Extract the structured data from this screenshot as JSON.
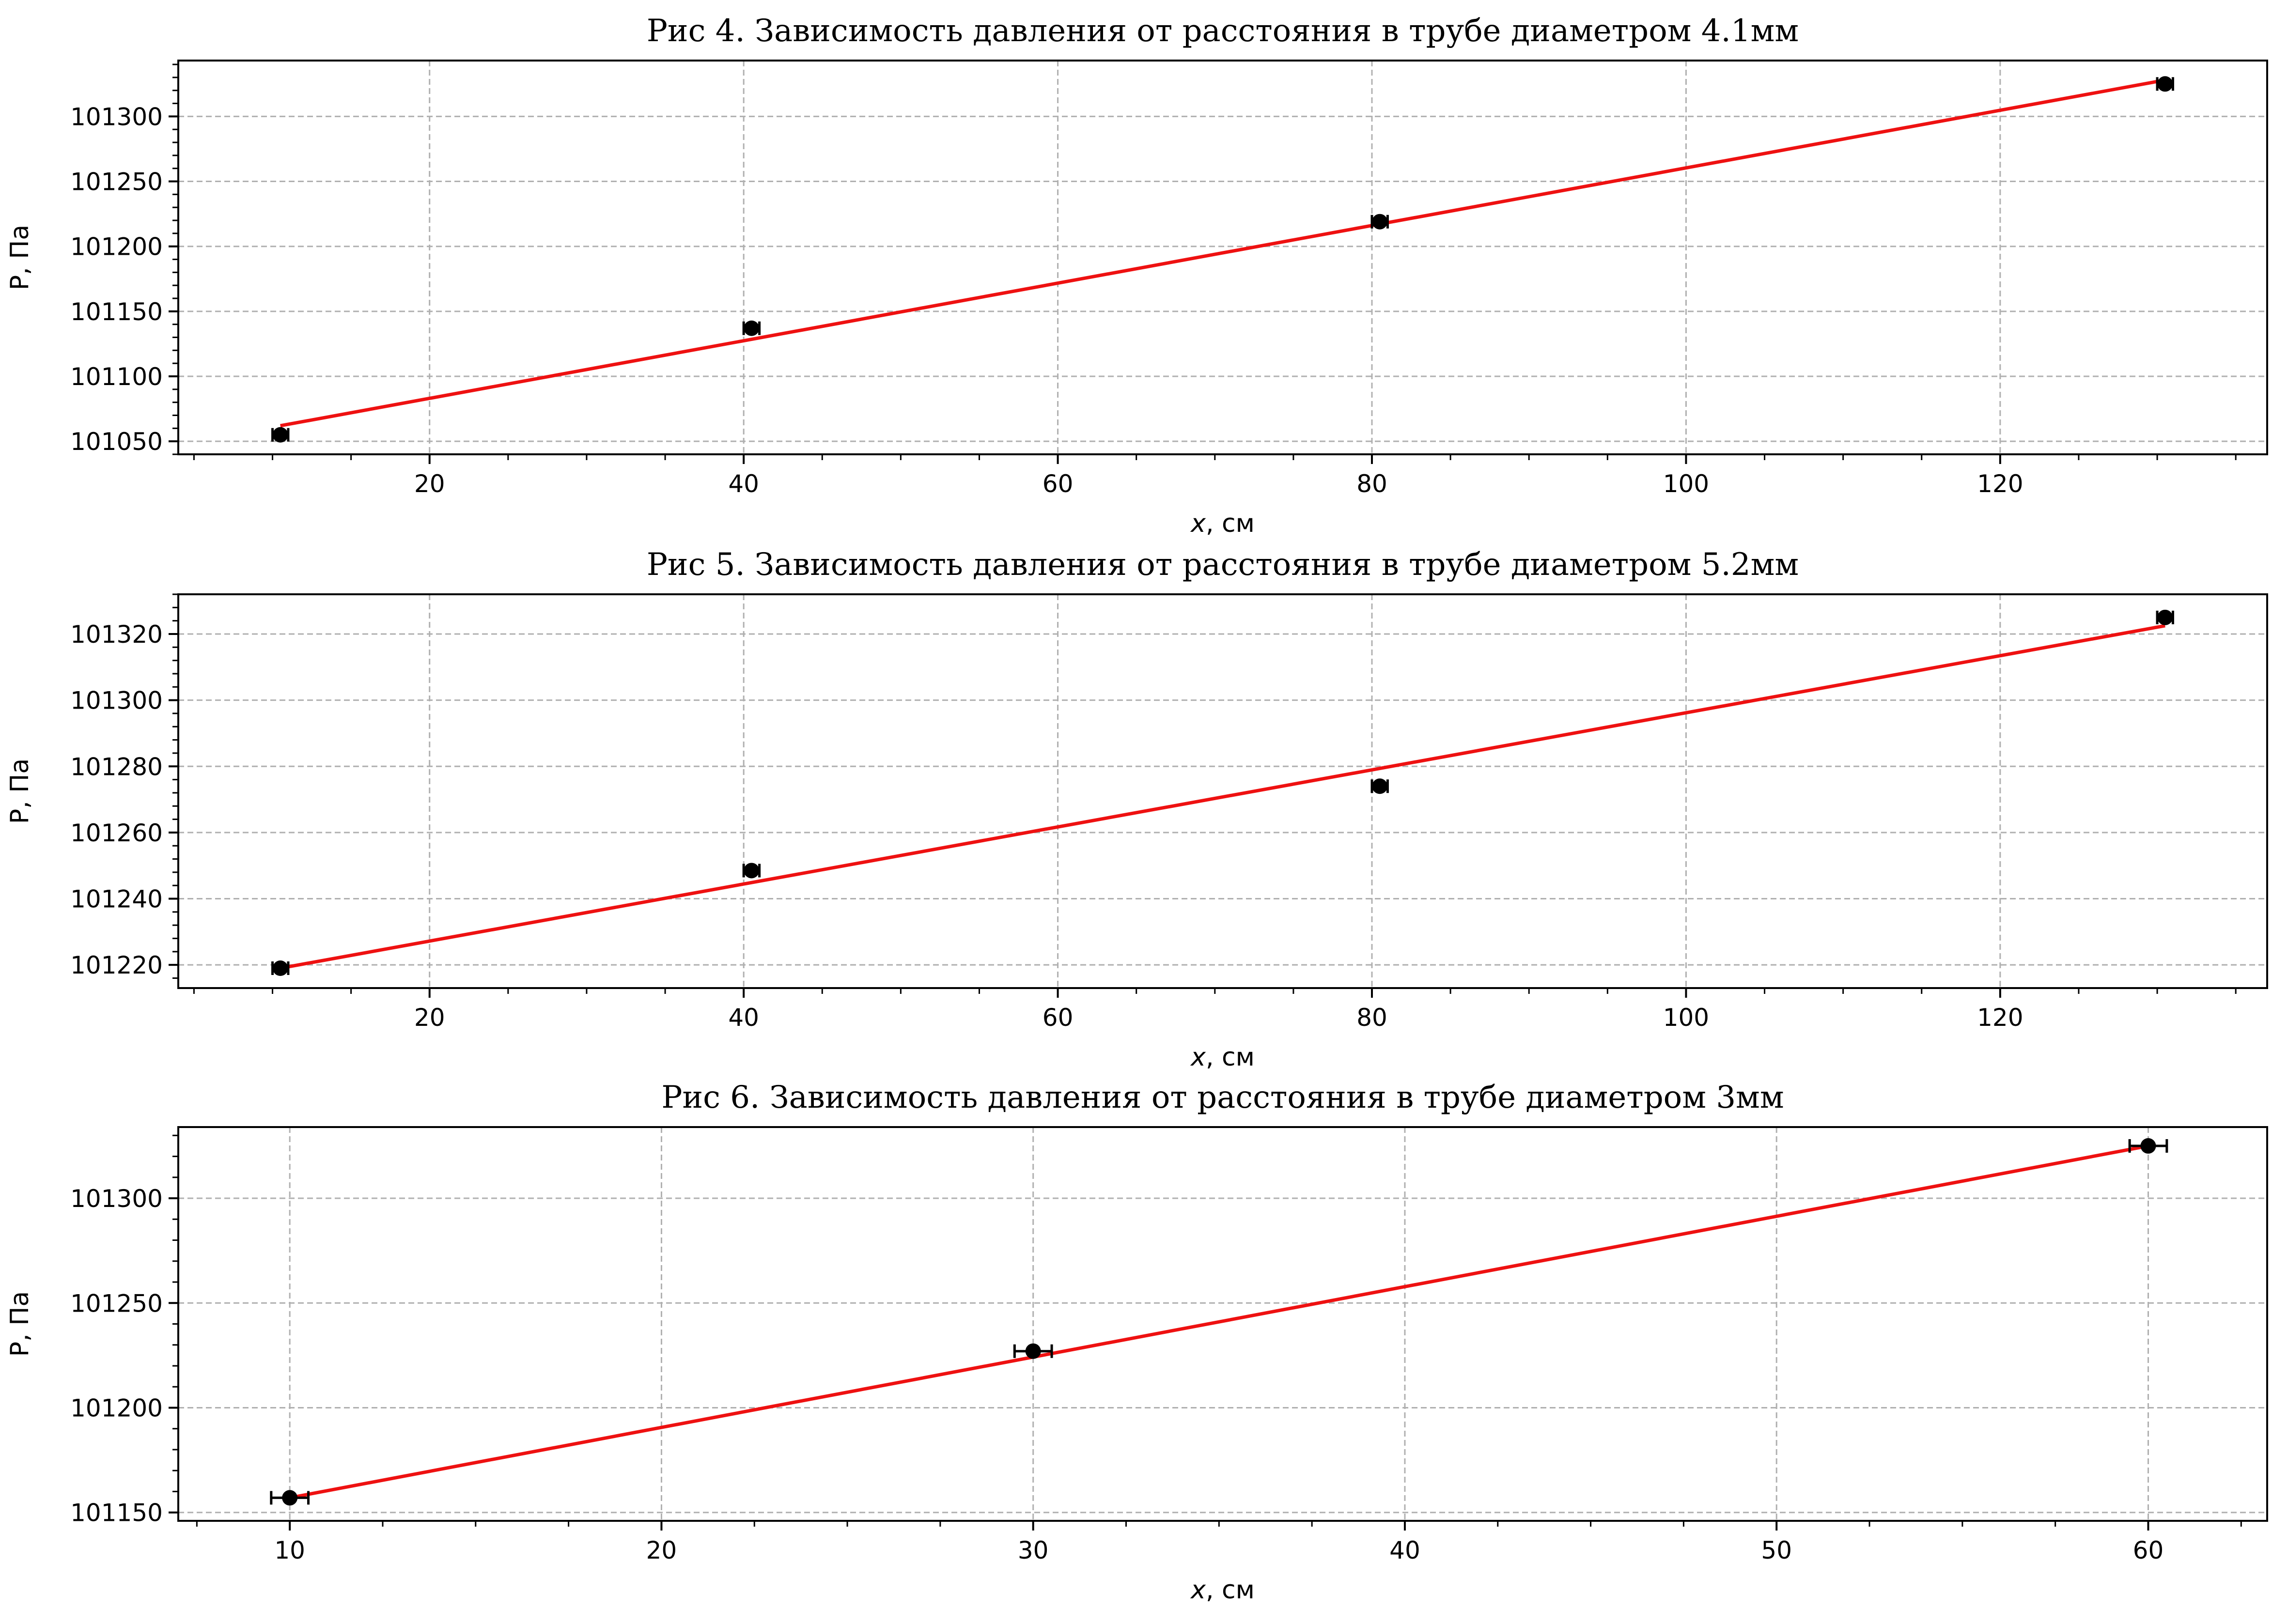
{
  "chart_data": [
    {
      "type": "scatter",
      "title": "Рис 4. Зависимость давления от расстояния в трубе диаметром 4.1мм",
      "xlabel_var": "x",
      "xlabel_unit": ", см",
      "ylabel": "P, Па",
      "xlim": [
        4,
        137
      ],
      "ylim": [
        101040,
        101343
      ],
      "x_ticks": [
        20,
        40,
        60,
        80,
        100,
        120
      ],
      "y_ticks": [
        101050,
        101100,
        101150,
        101200,
        101250,
        101300
      ],
      "grid": true,
      "series": [
        {
          "points": [
            {
              "x": 10.5,
              "y": 101055,
              "xerr": 0.5,
              "yerr": 4
            },
            {
              "x": 40.5,
              "y": 101137,
              "xerr": 0.5,
              "yerr": 4
            },
            {
              "x": 80.5,
              "y": 101219,
              "xerr": 0.5,
              "yerr": 4
            },
            {
              "x": 130.5,
              "y": 101325,
              "xerr": 0.5,
              "yerr": 4
            }
          ],
          "color": "#000000"
        }
      ],
      "fit": {
        "x": [
          10.5,
          130.5
        ],
        "y": [
          101062,
          101328
        ],
        "color": "#ee1111"
      }
    },
    {
      "type": "scatter",
      "title": "Рис 5. Зависимость давления от расстояния в трубе диаметром 5.2мм",
      "xlabel_var": "x",
      "xlabel_unit": ", см",
      "ylabel": "P, Па",
      "xlim": [
        4,
        137
      ],
      "ylim": [
        101213,
        101332
      ],
      "x_ticks": [
        20,
        40,
        60,
        80,
        100,
        120
      ],
      "y_ticks": [
        101220,
        101240,
        101260,
        101280,
        101300,
        101320
      ],
      "grid": true,
      "series": [
        {
          "points": [
            {
              "x": 10.5,
              "y": 101219,
              "xerr": 0.5,
              "yerr": 1.5
            },
            {
              "x": 40.5,
              "y": 101248.5,
              "xerr": 0.5,
              "yerr": 1.5
            },
            {
              "x": 80.5,
              "y": 101274,
              "xerr": 0.5,
              "yerr": 1.5
            },
            {
              "x": 130.5,
              "y": 101325,
              "xerr": 0.5,
              "yerr": 1.5
            }
          ],
          "color": "#000000"
        }
      ],
      "fit": {
        "x": [
          10.5,
          130.5
        ],
        "y": [
          101219,
          101322.5
        ],
        "color": "#ee1111"
      }
    },
    {
      "type": "scatter",
      "title": "Рис 6. Зависимость давления от расстояния в трубе диаметром 3мм",
      "xlabel_var": "x",
      "xlabel_unit": ", см",
      "ylabel": "P, Па",
      "xlim": [
        7,
        63.2
      ],
      "ylim": [
        101146,
        101334
      ],
      "x_ticks": [
        10,
        20,
        30,
        40,
        50,
        60
      ],
      "y_ticks": [
        101150,
        101200,
        101250,
        101300
      ],
      "grid": true,
      "series": [
        {
          "points": [
            {
              "x": 10,
              "y": 101157,
              "xerr": 0.5,
              "yerr": 1
            },
            {
              "x": 30,
              "y": 101227,
              "xerr": 0.5,
              "yerr": 1
            },
            {
              "x": 60,
              "y": 101325,
              "xerr": 0.5,
              "yerr": 1
            }
          ],
          "color": "#000000"
        }
      ],
      "fit": {
        "x": [
          10,
          60
        ],
        "y": [
          101157,
          101325
        ],
        "color": "#ee1111"
      }
    }
  ]
}
